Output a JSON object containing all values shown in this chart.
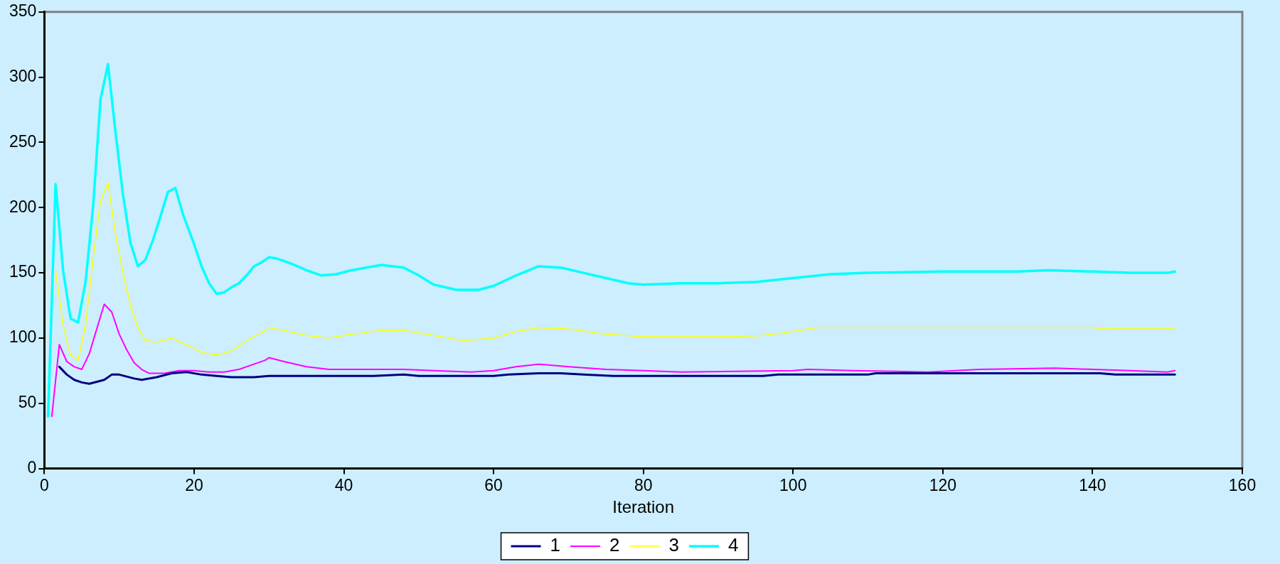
{
  "chart_data": {
    "type": "line",
    "xlabel": "Iteration",
    "xlim": [
      0,
      160
    ],
    "xticks": [
      0,
      20,
      40,
      60,
      80,
      100,
      120,
      140,
      160
    ],
    "ylim": [
      0,
      350
    ],
    "yticks": [
      0,
      50,
      100,
      150,
      200,
      250,
      300,
      350
    ],
    "grid": false,
    "legend": "bottom",
    "marker": "none",
    "line_style": "solid",
    "series": [
      {
        "name": "1",
        "color": "#000080",
        "x": [
          2,
          3,
          4,
          5,
          6,
          8,
          9,
          10,
          12,
          13,
          15,
          17,
          19,
          21,
          23,
          25,
          28,
          30,
          44,
          48,
          50,
          60,
          62,
          66,
          69,
          72,
          76,
          96,
          98,
          110,
          111,
          141,
          143,
          151
        ],
        "values": [
          78,
          72,
          68,
          66,
          65,
          68,
          72,
          72,
          69,
          68,
          70,
          73,
          74,
          72,
          71,
          70,
          70,
          71,
          71,
          72,
          71,
          71,
          72,
          73,
          73,
          72,
          71,
          71,
          72,
          72,
          73,
          73,
          72,
          72
        ]
      },
      {
        "name": "2",
        "color": "#ff00ff",
        "x": [
          1,
          2,
          3,
          4,
          5,
          6,
          7,
          8,
          9,
          10,
          11,
          12,
          13,
          14,
          16,
          18,
          20,
          22,
          24,
          26,
          28,
          29.5,
          30,
          32,
          35,
          38,
          42,
          48,
          52,
          57,
          60,
          63,
          66,
          70,
          75,
          80,
          85,
          100,
          102,
          108,
          118,
          125,
          135,
          140,
          145,
          150,
          151
        ],
        "values": [
          40,
          95,
          82,
          78,
          76,
          88,
          107,
          126,
          120,
          103,
          91,
          81,
          76,
          73,
          73,
          75,
          75,
          74,
          74,
          76,
          80,
          83,
          85,
          82,
          78,
          76,
          76,
          76,
          75,
          74,
          75,
          78,
          80,
          78,
          76,
          75,
          74,
          75,
          76,
          75,
          74,
          76,
          77,
          76,
          75,
          74,
          75
        ]
      },
      {
        "name": "3",
        "color": "#ffff00",
        "x": [
          1.5,
          2.5,
          3.5,
          4.5,
          5.5,
          6.5,
          7.5,
          8.5,
          9.5,
          10.5,
          11.5,
          12.5,
          13.5,
          15,
          17,
          19,
          21,
          23,
          25,
          27,
          29,
          30,
          32,
          35,
          38,
          40,
          45,
          48,
          52,
          56,
          60,
          63,
          66,
          70,
          75,
          80,
          92,
          96,
          100,
          103,
          140,
          142,
          151
        ],
        "values": [
          152,
          110,
          87,
          83,
          110,
          160,
          205,
          219,
          180,
          150,
          125,
          108,
          98,
          97,
          100,
          95,
          89,
          87,
          90,
          98,
          104,
          108,
          106,
          102,
          100,
          102,
          106,
          106,
          102,
          98,
          100,
          105,
          108,
          107,
          103,
          101,
          101,
          102,
          105,
          108,
          108,
          107,
          107
        ]
      },
      {
        "name": "4",
        "color": "#00ffff",
        "x": [
          0.5,
          1.5,
          2.5,
          3.5,
          4.5,
          5.5,
          6.5,
          7.5,
          8.5,
          9.5,
          10.5,
          11.5,
          12.5,
          13.5,
          14.5,
          15.5,
          16.5,
          17.5,
          18.5,
          20,
          21,
          22,
          23,
          24,
          25,
          26,
          27,
          28,
          29,
          30,
          31,
          33,
          35,
          37,
          39,
          41,
          43,
          45,
          48,
          50,
          52,
          55,
          58,
          60,
          63,
          66,
          69,
          72,
          75,
          78,
          80,
          85,
          90,
          95,
          100,
          105,
          110,
          120,
          130,
          134,
          140,
          145,
          150,
          151
        ],
        "values": [
          40,
          218,
          152,
          115,
          112,
          143,
          200,
          283,
          310,
          258,
          210,
          173,
          155,
          160,
          175,
          193,
          212,
          215,
          195,
          172,
          155,
          142,
          134,
          135,
          139,
          142,
          148,
          155,
          158,
          162,
          161,
          157,
          152,
          148,
          149,
          152,
          154,
          156,
          154,
          148,
          141,
          137,
          137,
          140,
          148,
          155,
          154,
          150,
          146,
          142,
          141,
          142,
          142,
          143,
          146,
          149,
          150,
          151,
          151,
          152,
          151,
          150,
          150,
          151
        ]
      }
    ]
  }
}
